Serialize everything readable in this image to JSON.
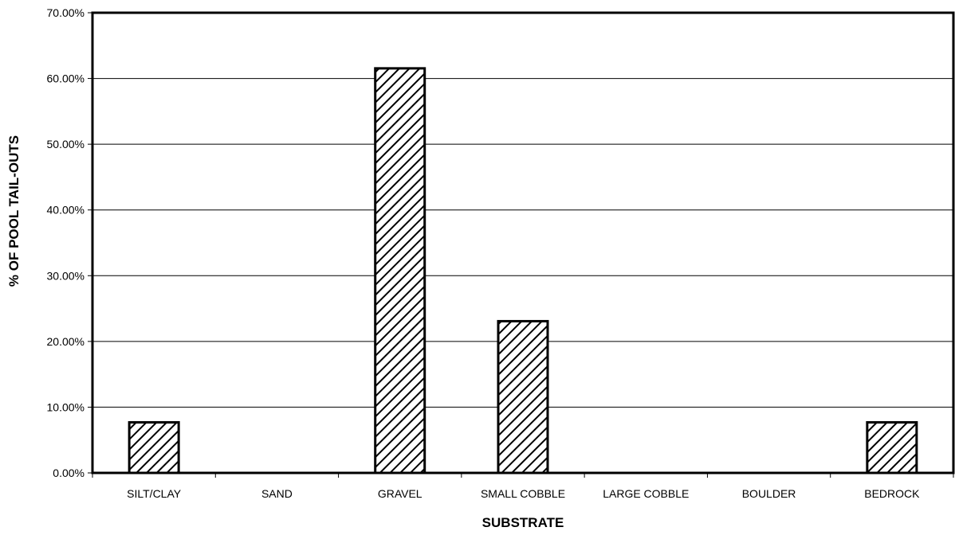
{
  "chart_data": {
    "type": "bar",
    "title": "",
    "xlabel": "SUBSTRATE",
    "ylabel": "% OF POOL TAIL-OUTS",
    "categories": [
      "SILT/CLAY",
      "SAND",
      "GRAVEL",
      "SMALL COBBLE",
      "LARGE COBBLE",
      "BOULDER",
      "BEDROCK"
    ],
    "values": [
      7.69,
      0,
      61.54,
      23.08,
      0,
      0,
      7.69
    ],
    "ylim": [
      0,
      70
    ],
    "yticks": [
      "0.00%",
      "10.00%",
      "20.00%",
      "30.00%",
      "40.00%",
      "50.00%",
      "60.00%",
      "70.00%"
    ],
    "grid": "horizontal",
    "bar_fill": "diagonal-hatch",
    "colors": {
      "bar_stroke": "#000000",
      "hatch": "#000000",
      "background": "#ffffff"
    }
  }
}
